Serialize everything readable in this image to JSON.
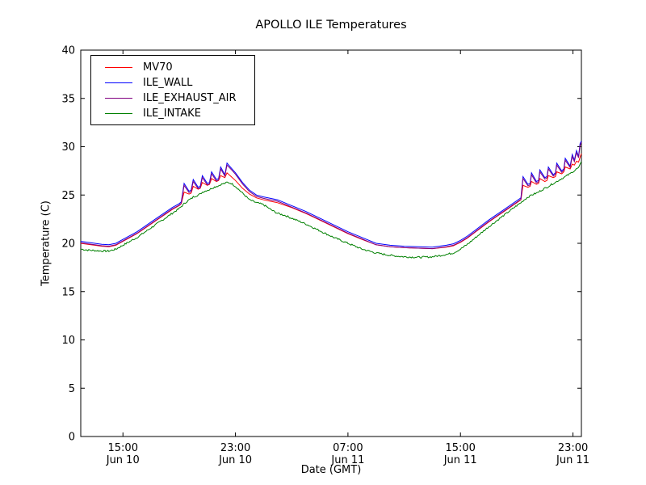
{
  "figure": {
    "background": "#ffffff",
    "frame_color": "#000000"
  },
  "chart_data": {
    "type": "line",
    "title": "APOLLO ILE Temperatures",
    "xlabel": "Date (GMT)",
    "ylabel": "Temperature (C)",
    "x_unit": "hours after Jun 10 12:00 GMT",
    "xlim": [
      0,
      35.6
    ],
    "ylim": [
      0,
      40
    ],
    "grid": false,
    "legend_position": "upper-left",
    "xticks": {
      "positions": [
        3,
        11,
        19,
        27,
        35
      ],
      "labels": [
        [
          "15:00",
          "Jun 10"
        ],
        [
          "23:00",
          "Jun 10"
        ],
        [
          "07:00",
          "Jun 11"
        ],
        [
          "15:00",
          "Jun 11"
        ],
        [
          "23:00",
          "Jun 11"
        ]
      ]
    },
    "yticks": [
      0,
      5,
      10,
      15,
      20,
      25,
      30,
      35,
      40
    ],
    "x": [
      0,
      0.5,
      1,
      1.5,
      2,
      2.5,
      3,
      3.5,
      4,
      4.5,
      5,
      5.5,
      6,
      6.5,
      7,
      7.15,
      7.35,
      7.7,
      7.85,
      8.0,
      8.35,
      8.5,
      8.65,
      9.0,
      9.15,
      9.3,
      9.65,
      9.8,
      9.95,
      10.25,
      10.4,
      10.7,
      11,
      11.5,
      12,
      12.5,
      13,
      13.5,
      14,
      14.5,
      15,
      16,
      17,
      18,
      19,
      20,
      21,
      22,
      23,
      24,
      25,
      26,
      26.5,
      27,
      27.5,
      28,
      28.5,
      29,
      29.5,
      30,
      30.5,
      31,
      31.3,
      31.45,
      31.8,
      31.95,
      32.05,
      32.4,
      32.55,
      32.65,
      33.0,
      33.15,
      33.25,
      33.6,
      33.75,
      33.85,
      34.2,
      34.35,
      34.45,
      34.8,
      34.95,
      35.1,
      35.25,
      35.4,
      35.5,
      35.6
    ],
    "series": [
      {
        "name": "MV70",
        "color": "#ff0000",
        "noise": 0,
        "values": [
          20.0,
          19.9,
          19.8,
          19.7,
          19.65,
          19.8,
          20.2,
          20.6,
          21.0,
          21.5,
          22.0,
          22.5,
          23.0,
          23.5,
          23.9,
          24.1,
          25.3,
          25.1,
          25.2,
          25.9,
          25.6,
          25.7,
          26.3,
          26.0,
          26.1,
          26.7,
          26.4,
          26.5,
          27.0,
          26.8,
          27.3,
          26.9,
          26.5,
          25.7,
          25.1,
          24.7,
          24.5,
          24.35,
          24.2,
          23.95,
          23.7,
          23.1,
          22.4,
          21.7,
          21.0,
          20.4,
          19.85,
          19.65,
          19.55,
          19.5,
          19.45,
          19.6,
          19.75,
          20.1,
          20.55,
          21.1,
          21.65,
          22.2,
          22.7,
          23.2,
          23.7,
          24.2,
          24.5,
          26.0,
          25.8,
          25.9,
          26.4,
          26.1,
          26.2,
          26.7,
          26.4,
          26.5,
          27.0,
          26.8,
          26.9,
          27.4,
          27.2,
          27.4,
          27.9,
          27.7,
          28.2,
          28.1,
          28.5,
          28.4,
          28.9,
          29.3
        ]
      },
      {
        "name": "ILE_WALL",
        "color": "#0000ff",
        "noise": 0,
        "values": [
          20.2,
          20.1,
          20.0,
          19.9,
          19.85,
          20.0,
          20.4,
          20.8,
          21.2,
          21.7,
          22.2,
          22.7,
          23.2,
          23.7,
          24.1,
          24.3,
          26.2,
          25.4,
          25.5,
          26.6,
          25.8,
          25.9,
          27.0,
          26.2,
          26.3,
          27.4,
          26.6,
          26.7,
          27.9,
          27.1,
          28.3,
          27.8,
          27.3,
          26.3,
          25.5,
          25.0,
          24.8,
          24.65,
          24.5,
          24.2,
          23.9,
          23.3,
          22.6,
          21.9,
          21.2,
          20.6,
          20.0,
          19.8,
          19.7,
          19.65,
          19.6,
          19.8,
          19.95,
          20.3,
          20.75,
          21.3,
          21.85,
          22.4,
          22.9,
          23.4,
          23.9,
          24.4,
          24.7,
          26.9,
          26.1,
          26.2,
          27.3,
          26.4,
          26.5,
          27.6,
          26.8,
          26.9,
          27.9,
          27.1,
          27.3,
          28.3,
          27.5,
          27.7,
          28.8,
          28.0,
          29.2,
          28.6,
          29.6,
          29.0,
          30.3,
          30.6
        ]
      },
      {
        "name": "ILE_EXHAUST_AIR",
        "color": "#800080",
        "noise": 0,
        "values": [
          20.05,
          19.95,
          19.85,
          19.75,
          19.7,
          19.85,
          20.25,
          20.65,
          21.05,
          21.55,
          22.05,
          22.55,
          23.05,
          23.55,
          23.95,
          24.15,
          26.0,
          25.25,
          25.35,
          26.4,
          25.65,
          25.75,
          26.8,
          26.05,
          26.15,
          27.2,
          26.45,
          26.55,
          27.7,
          26.95,
          28.1,
          27.65,
          27.15,
          26.15,
          25.35,
          24.85,
          24.65,
          24.5,
          24.35,
          24.05,
          23.75,
          23.15,
          22.45,
          21.75,
          21.05,
          20.45,
          19.85,
          19.65,
          19.55,
          19.5,
          19.45,
          19.65,
          19.8,
          20.15,
          20.6,
          21.15,
          21.7,
          22.25,
          22.75,
          23.25,
          23.75,
          24.25,
          24.55,
          26.7,
          25.95,
          26.05,
          27.1,
          26.25,
          26.35,
          27.4,
          26.65,
          26.75,
          27.7,
          26.95,
          27.15,
          28.1,
          27.35,
          27.55,
          28.6,
          27.85,
          29.0,
          28.45,
          29.4,
          28.85,
          30.1,
          30.45
        ]
      },
      {
        "name": "ILE_INTAKE",
        "color": "#008000",
        "noise": 0.09,
        "values": [
          19.4,
          19.3,
          19.25,
          19.2,
          19.2,
          19.4,
          19.8,
          20.2,
          20.6,
          21.1,
          21.6,
          22.1,
          22.6,
          23.1,
          23.6,
          23.8,
          24.1,
          24.5,
          24.6,
          24.8,
          25.0,
          25.1,
          25.3,
          25.5,
          25.55,
          25.7,
          25.9,
          25.95,
          26.1,
          26.2,
          26.3,
          26.2,
          25.9,
          25.2,
          24.5,
          24.2,
          24.0,
          23.5,
          23.1,
          22.9,
          22.6,
          22.0,
          21.3,
          20.6,
          20.0,
          19.4,
          19.0,
          18.75,
          18.6,
          18.55,
          18.6,
          18.85,
          19.0,
          19.4,
          19.9,
          20.5,
          21.1,
          21.7,
          22.25,
          22.8,
          23.35,
          23.9,
          24.2,
          24.4,
          24.8,
          24.9,
          25.0,
          25.2,
          25.3,
          25.4,
          25.7,
          25.8,
          25.9,
          26.2,
          26.3,
          26.4,
          26.7,
          26.8,
          26.9,
          27.2,
          27.4,
          27.5,
          27.7,
          27.8,
          28.1,
          28.4
        ]
      }
    ]
  }
}
